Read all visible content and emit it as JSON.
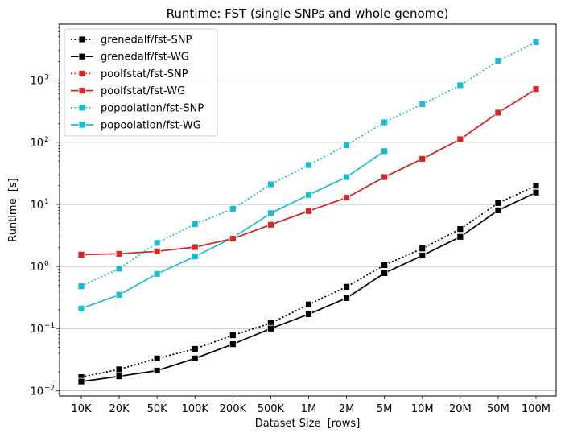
{
  "chart_data": {
    "type": "line",
    "title": "Runtime:  FST (single SNPs and whole genome)",
    "xlabel": "Dataset Size  [rows]",
    "ylabel": "Runtime  [s]",
    "yscale": "log",
    "ylim": [
      0.0082,
      8000
    ],
    "yticks": [
      {
        "value": 0.01,
        "base": "10",
        "exp": "−2"
      },
      {
        "value": 0.1,
        "base": "10",
        "exp": "−1"
      },
      {
        "value": 1,
        "base": "10",
        "exp": "0"
      },
      {
        "value": 10,
        "base": "10",
        "exp": "1"
      },
      {
        "value": 100,
        "base": "10",
        "exp": "2"
      },
      {
        "value": 1000,
        "base": "10",
        "exp": "3"
      }
    ],
    "grid": "horizontal",
    "legend": "top-left",
    "categories": [
      "10K",
      "20K",
      "50K",
      "100K",
      "200K",
      "500K",
      "1M",
      "2M",
      "5M",
      "10M",
      "20M",
      "50M",
      "100M"
    ],
    "series": [
      {
        "name": "grenedalf/fst-SNP",
        "color": "#000000",
        "style": "dotted",
        "values": [
          0.0165,
          0.022,
          0.033,
          0.047,
          0.078,
          0.122,
          0.245,
          0.47,
          1.05,
          1.95,
          4.0,
          10.5,
          20.0
        ]
      },
      {
        "name": "grenedalf/fst-WG",
        "color": "#000000",
        "style": "solid",
        "values": [
          0.014,
          0.017,
          0.021,
          0.033,
          0.056,
          0.1,
          0.17,
          0.31,
          0.78,
          1.5,
          3.0,
          8.0,
          15.5
        ]
      },
      {
        "name": "poolfstat/fst-SNP",
        "color": "#d62728",
        "style": "dotted",
        "values": [
          1.55,
          1.6,
          1.75,
          2.05,
          2.8,
          4.7,
          7.8,
          12.8,
          27.5,
          54,
          112,
          300,
          720
        ]
      },
      {
        "name": "poolfstat/fst-WG",
        "color": "#d62728",
        "style": "solid",
        "values": [
          1.55,
          1.6,
          1.75,
          2.05,
          2.8,
          4.7,
          7.8,
          12.8,
          27.5,
          54,
          112,
          300,
          720
        ]
      },
      {
        "name": "popoolation/fst-SNP",
        "color": "#17becf",
        "style": "dotted",
        "values": [
          0.48,
          0.92,
          2.4,
          4.8,
          8.5,
          21,
          43,
          90,
          210,
          410,
          830,
          2050,
          4100
        ]
      },
      {
        "name": "popoolation/fst-WG",
        "color": "#17becf",
        "style": "solid",
        "values": [
          0.21,
          0.35,
          0.76,
          1.45,
          2.9,
          7.2,
          14.2,
          27.5,
          72,
          null,
          null,
          null,
          null
        ]
      }
    ]
  }
}
